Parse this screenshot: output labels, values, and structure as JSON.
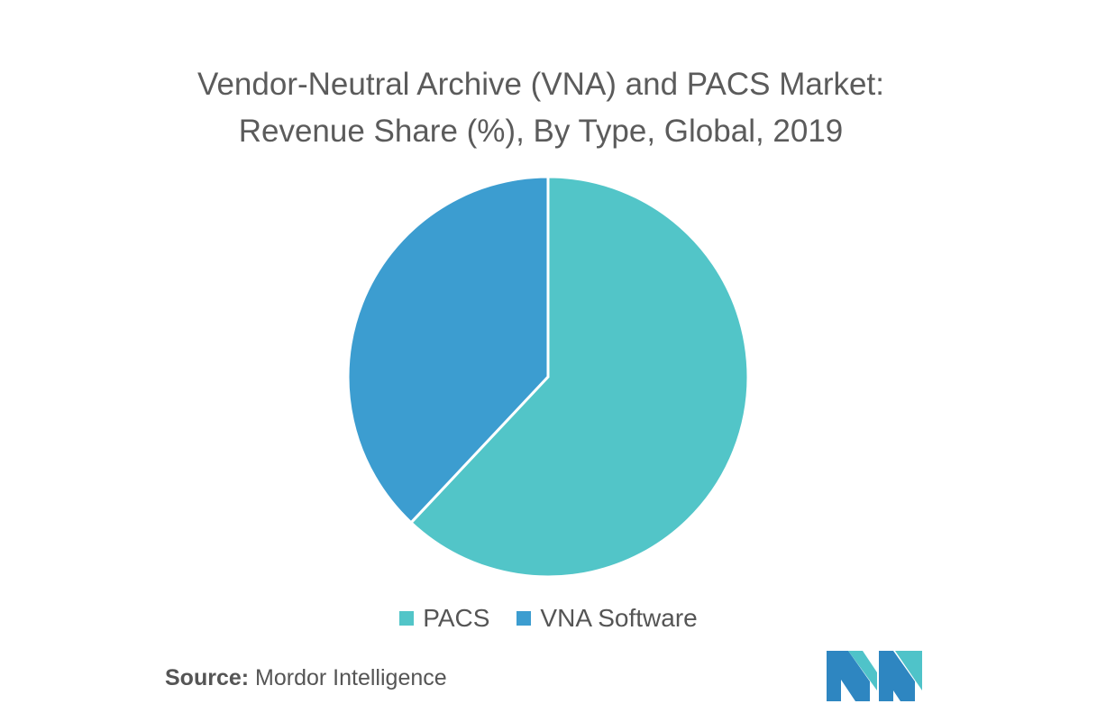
{
  "chart_data": {
    "type": "pie",
    "title": "Vendor-Neutral Archive (VNA) and PACS Market:",
    "subtitle": "Revenue Share (%), By Type, Global, 2019",
    "categories": [
      "PACS",
      "VNA Software"
    ],
    "values": [
      62,
      38
    ],
    "colors": [
      "#52C5C8",
      "#3C9DD0"
    ],
    "legend_position": "bottom"
  },
  "source": {
    "label": "Source:",
    "text": "Mordor Intelligence"
  },
  "logo": {
    "colors": [
      "#2E86C1",
      "#4FC3C9"
    ]
  }
}
